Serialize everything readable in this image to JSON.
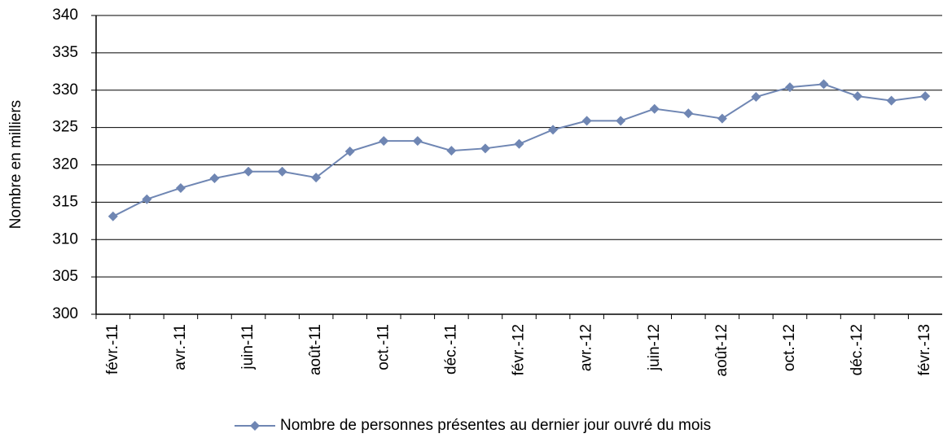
{
  "chart_data": {
    "type": "line",
    "y_label": "Nombre en milliers",
    "categories": [
      "févr.-11",
      null,
      "avr.-11",
      null,
      "juin-11",
      null,
      "août-11",
      null,
      "oct.-11",
      null,
      "déc.-11",
      null,
      "févr.-12",
      null,
      "avr.-12",
      null,
      "juin-12",
      null,
      "août-12",
      null,
      "oct.-12",
      null,
      "déc.-12",
      null,
      "févr.-13"
    ],
    "series": [
      {
        "name": "Nombre de personnes présentes au dernier jour ouvré du mois",
        "color": "#6f86b3",
        "values": [
          313.1,
          315.4,
          316.9,
          318.2,
          319.1,
          319.1,
          318.3,
          321.8,
          323.2,
          323.2,
          321.9,
          322.2,
          322.8,
          324.7,
          325.9,
          325.9,
          327.5,
          326.9,
          326.2,
          329.1,
          330.4,
          330.8,
          329.2,
          328.6,
          329.2
        ]
      }
    ],
    "ylim": [
      300,
      340
    ],
    "yticks": [
      300,
      305,
      310,
      315,
      320,
      325,
      330,
      335,
      340
    ],
    "grid": true,
    "legend": "bottom"
  }
}
